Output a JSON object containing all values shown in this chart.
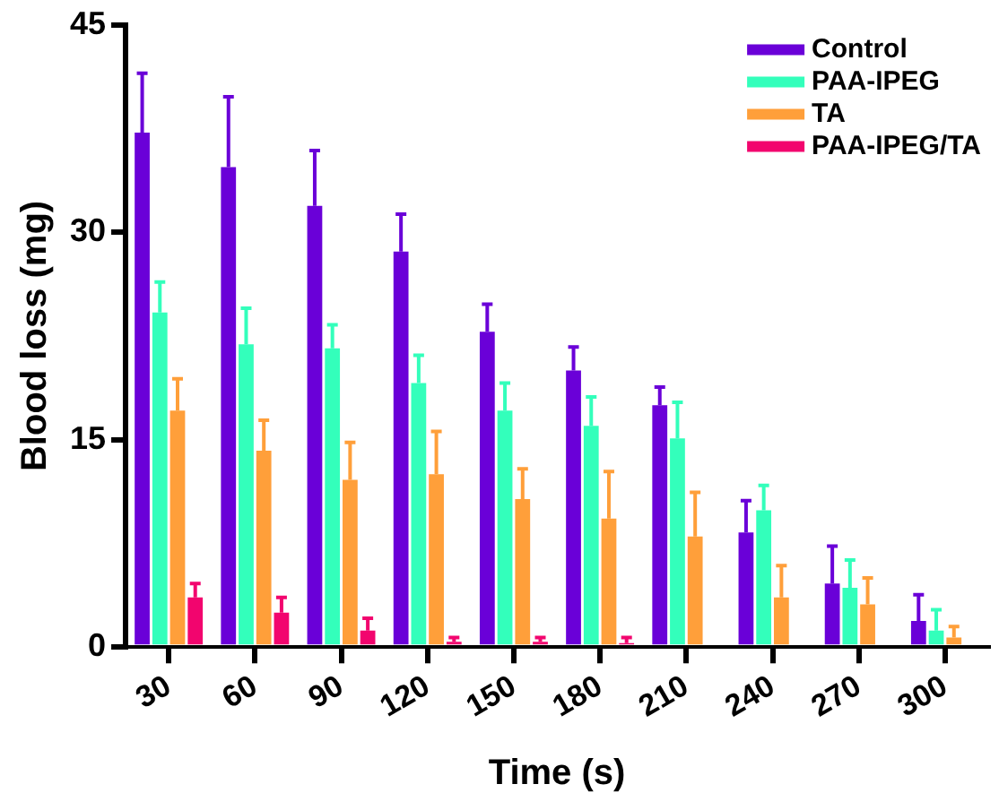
{
  "chart_data": {
    "type": "bar",
    "xlabel": "Time (s)",
    "ylabel": "Blood loss (mg)",
    "categories": [
      "30",
      "60",
      "90",
      "120",
      "150",
      "180",
      "210",
      "240",
      "270",
      "300"
    ],
    "ylim": [
      0,
      45
    ],
    "yticks": [
      0,
      15,
      30,
      45
    ],
    "grid": false,
    "legend": "top right",
    "series": [
      {
        "name": "Control",
        "color": "#6a00d8",
        "values": [
          37.2,
          34.7,
          31.9,
          28.6,
          22.8,
          20.0,
          17.5,
          8.3,
          4.6,
          1.9
        ],
        "errors": [
          [
            37.2,
            41.5
          ],
          [
            34.7,
            39.8
          ],
          [
            31.9,
            35.9
          ],
          [
            28.6,
            31.3
          ],
          [
            22.8,
            24.8
          ],
          [
            20.0,
            21.7
          ],
          [
            17.5,
            18.8
          ],
          [
            8.3,
            10.6
          ],
          [
            4.6,
            7.3
          ],
          [
            1.9,
            3.8
          ]
        ]
      },
      {
        "name": "PAA-IPEG",
        "color": "#33ffbb",
        "values": [
          24.2,
          21.9,
          21.6,
          19.1,
          17.1,
          16.0,
          15.1,
          9.9,
          4.3,
          1.2
        ],
        "errors": [
          [
            24.2,
            26.4
          ],
          [
            21.9,
            24.5
          ],
          [
            21.6,
            23.3
          ],
          [
            19.1,
            21.1
          ],
          [
            17.1,
            19.1
          ],
          [
            16.0,
            18.1
          ],
          [
            15.1,
            17.7
          ],
          [
            9.9,
            11.7
          ],
          [
            4.3,
            6.3
          ],
          [
            1.2,
            2.7
          ]
        ]
      },
      {
        "name": "TA",
        "color": "#ff9f3a",
        "values": [
          17.1,
          14.2,
          12.1,
          12.5,
          10.7,
          9.3,
          8.0,
          3.6,
          3.1,
          0.7
        ],
        "errors": [
          [
            17.1,
            19.4
          ],
          [
            14.2,
            16.4
          ],
          [
            12.1,
            14.8
          ],
          [
            12.5,
            15.6
          ],
          [
            10.7,
            12.9
          ],
          [
            9.3,
            12.7
          ],
          [
            8.0,
            11.2
          ],
          [
            3.6,
            5.9
          ],
          [
            3.1,
            5.0
          ],
          [
            0.7,
            1.5
          ]
        ]
      },
      {
        "name": "PAA-IPEG/TA",
        "color": "#f2056e",
        "values": [
          3.6,
          2.5,
          1.2,
          0.4,
          0.4,
          0.3,
          null,
          null,
          null,
          null
        ],
        "errors": [
          [
            3.6,
            4.6
          ],
          [
            2.5,
            3.6
          ],
          [
            1.2,
            2.1
          ],
          [
            0.4,
            0.7
          ],
          [
            0.4,
            0.7
          ],
          [
            0.3,
            0.7
          ],
          null,
          null,
          null,
          null
        ]
      }
    ]
  }
}
